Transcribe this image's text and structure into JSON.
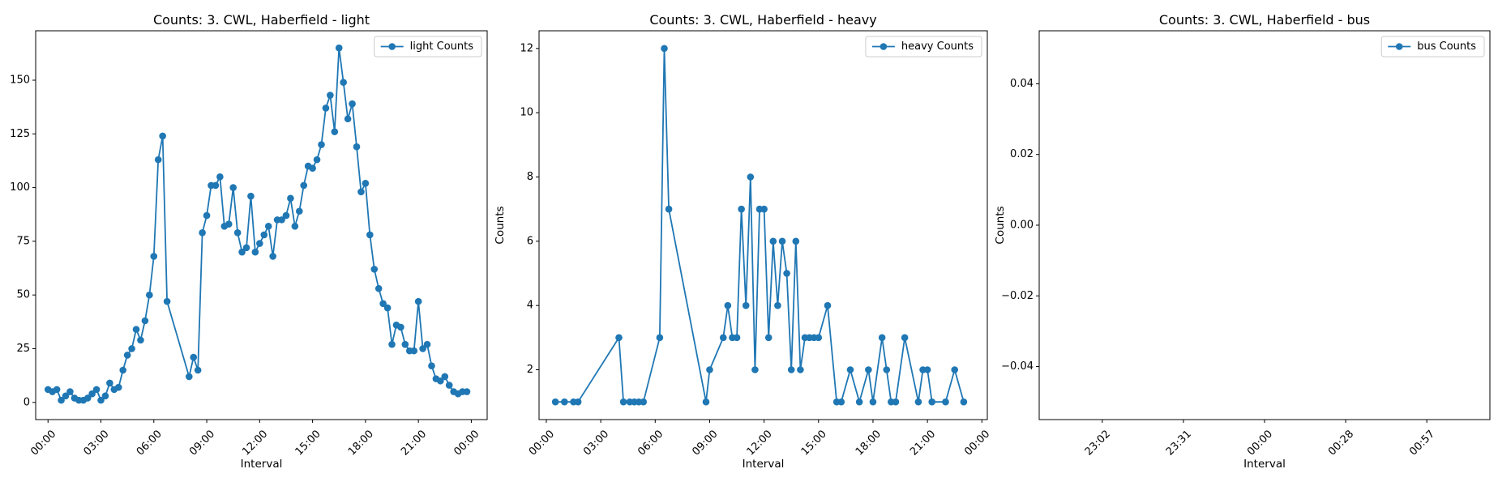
{
  "chart_data": [
    {
      "type": "line",
      "title": "Counts: 3. CWL, Haberfield - light",
      "xlabel": "Interval",
      "ylabel": "",
      "legend_position": "upper right",
      "color": "#1f77b4",
      "xlim": [
        -0.7,
        24.9
      ],
      "ylim": [
        -8,
        173
      ],
      "x_ticks": [
        "00:00",
        "03:00",
        "06:00",
        "09:00",
        "12:00",
        "15:00",
        "18:00",
        "21:00",
        "00:00"
      ],
      "x_tick_values": [
        0,
        3,
        6,
        9,
        12,
        15,
        18,
        21,
        24
      ],
      "y_ticks": [
        0,
        25,
        50,
        75,
        100,
        125,
        150
      ],
      "series": [
        {
          "name": "light Counts",
          "x": [
            0,
            0.25,
            0.5,
            0.75,
            1,
            1.25,
            1.5,
            1.75,
            2,
            2.25,
            2.5,
            2.75,
            3,
            3.25,
            3.5,
            3.75,
            4,
            4.25,
            4.5,
            4.75,
            5,
            5.25,
            5.5,
            5.75,
            6,
            6.25,
            6.5,
            6.75,
            8,
            8.25,
            8.5,
            8.75,
            9,
            9.25,
            9.5,
            9.75,
            10,
            10.25,
            10.5,
            10.75,
            11,
            11.25,
            11.5,
            11.75,
            12,
            12.25,
            12.5,
            12.75,
            13,
            13.25,
            13.5,
            13.75,
            14,
            14.25,
            14.5,
            14.75,
            15,
            15.25,
            15.5,
            15.75,
            16,
            16.25,
            16.5,
            16.75,
            17,
            17.25,
            17.5,
            17.75,
            18,
            18.25,
            18.5,
            18.75,
            19,
            19.25,
            19.5,
            19.75,
            20,
            20.25,
            20.5,
            20.75,
            21,
            21.25,
            21.5,
            21.75,
            22,
            22.25,
            22.5,
            22.75,
            23,
            23.25,
            23.5,
            23.75
          ],
          "y": [
            6,
            5,
            6,
            1,
            3,
            5,
            2,
            1,
            1,
            2,
            4,
            6,
            1,
            3,
            9,
            6,
            7,
            15,
            22,
            25,
            34,
            29,
            38,
            50,
            68,
            113,
            124,
            47,
            12,
            21,
            15,
            79,
            87,
            101,
            101,
            105,
            82,
            83,
            100,
            79,
            70,
            72,
            96,
            70,
            74,
            78,
            82,
            68,
            85,
            85,
            87,
            95,
            82,
            89,
            101,
            110,
            109,
            113,
            120,
            137,
            143,
            126,
            165,
            149,
            132,
            139,
            119,
            98,
            102,
            78,
            62,
            53,
            46,
            44,
            27,
            36,
            35,
            27,
            24,
            24,
            47,
            25,
            27,
            17,
            11,
            10,
            12,
            8,
            5,
            4,
            5,
            5
          ]
        }
      ]
    },
    {
      "type": "line",
      "title": "Counts: 3. CWL, Haberfield - heavy",
      "xlabel": "Interval",
      "ylabel": "Counts",
      "legend_position": "upper right",
      "color": "#1f77b4",
      "xlim": [
        -0.4,
        24.3
      ],
      "ylim": [
        0.45,
        12.55
      ],
      "x_ticks": [
        "00:00",
        "03:00",
        "06:00",
        "09:00",
        "12:00",
        "15:00",
        "18:00",
        "21:00",
        "00:00"
      ],
      "x_tick_values": [
        0,
        3,
        6,
        9,
        12,
        15,
        18,
        21,
        24
      ],
      "y_ticks": [
        2,
        4,
        6,
        8,
        10,
        12
      ],
      "series": [
        {
          "name": "heavy Counts",
          "x": [
            0.5,
            1,
            1.5,
            1.75,
            4,
            4.25,
            4.6,
            4.85,
            5.1,
            5.35,
            6.25,
            6.5,
            6.75,
            8.8,
            9,
            9.75,
            10,
            10.25,
            10.5,
            10.75,
            11,
            11.25,
            11.5,
            11.75,
            12,
            12.25,
            12.5,
            12.75,
            13,
            13.25,
            13.5,
            13.75,
            14,
            14.25,
            14.5,
            14.75,
            15,
            15.5,
            16,
            16.25,
            16.75,
            17.25,
            17.75,
            18,
            18.5,
            18.75,
            19,
            19.25,
            19.75,
            20.5,
            20.75,
            21,
            21.25,
            22,
            22.5,
            23
          ],
          "y": [
            1,
            1,
            1,
            1,
            3,
            1,
            1,
            1,
            1,
            1,
            3,
            12,
            7,
            1,
            2,
            3,
            4,
            3,
            3,
            7,
            4,
            8,
            2,
            7,
            7,
            3,
            6,
            4,
            6,
            5,
            2,
            6,
            2,
            3,
            3,
            3,
            3,
            4,
            1,
            1,
            2,
            1,
            2,
            1,
            3,
            2,
            1,
            1,
            3,
            1,
            2,
            2,
            1,
            1,
            2,
            1
          ]
        }
      ]
    },
    {
      "type": "line",
      "title": "Counts: 3. CWL, Haberfield - bus",
      "xlabel": "Interval",
      "ylabel": "Counts",
      "legend_position": "upper right",
      "color": "#1f77b4",
      "xlim": [
        0,
        1
      ],
      "ylim": [
        -0.055,
        0.055
      ],
      "x_ticks": [
        "23:02",
        "23:31",
        "00:00",
        "00:28",
        "00:57"
      ],
      "x_tick_values": [
        0.14,
        0.32,
        0.5,
        0.68,
        0.86
      ],
      "y_ticks": [
        -0.04,
        -0.02,
        0.0,
        0.02,
        0.04
      ],
      "y_tick_labels": [
        "−0.04",
        "−0.02",
        "0.00",
        "0.02",
        "0.04"
      ],
      "series": [
        {
          "name": "bus Counts",
          "x": [],
          "y": []
        }
      ]
    }
  ]
}
